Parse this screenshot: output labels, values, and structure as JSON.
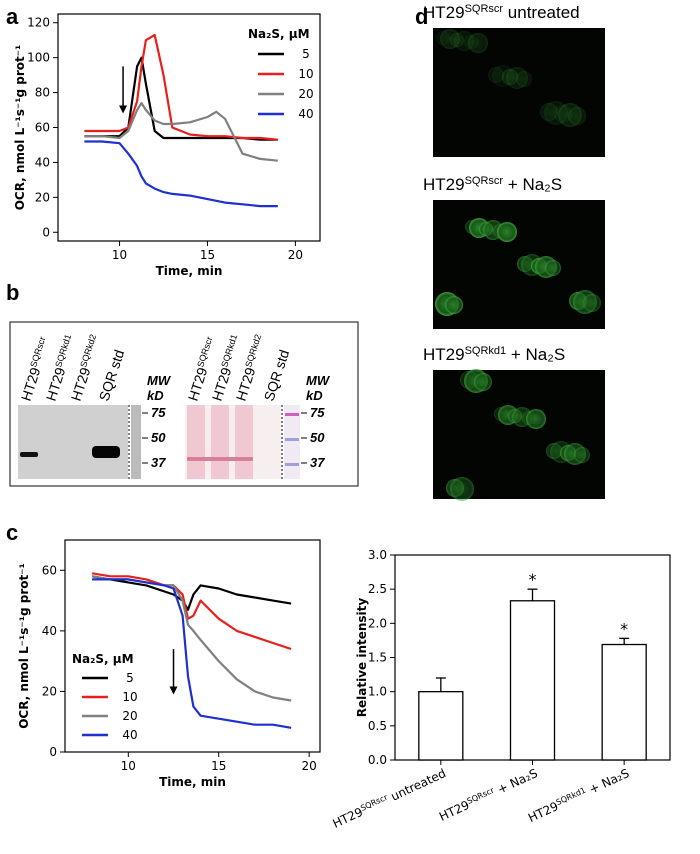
{
  "panel_labels": [
    "a",
    "b",
    "c",
    "d"
  ],
  "chart_data": [
    {
      "type": "line",
      "x_label": "Time, min",
      "y_label": "OCR, nmol L⁻¹s⁻¹g prot⁻¹",
      "x": [
        8,
        9,
        10,
        10.5,
        11,
        11.25,
        11.5,
        12,
        12.5,
        13,
        14,
        15,
        15.5,
        16,
        17,
        18,
        19
      ],
      "xlim": [
        6.5,
        21.4
      ],
      "xticks": [
        10,
        15,
        20
      ],
      "ylim": [
        -5,
        125
      ],
      "yticks": [
        0,
        20,
        40,
        60,
        80,
        100,
        120
      ],
      "legend_title": "Na₂S, μM",
      "legend": "upper right",
      "arrow": {
        "x": 10.2,
        "y": [
          95,
          68
        ]
      },
      "series": [
        {
          "name": "5",
          "color": "#000000",
          "values": [
            55,
            55,
            55,
            60,
            95,
            100,
            85,
            58,
            54,
            54,
            54,
            54,
            54,
            54,
            54,
            53,
            53
          ]
        },
        {
          "name": "10",
          "color": "#e8201c",
          "values": [
            58,
            58,
            58,
            60,
            75,
            95,
            110,
            113,
            90,
            60,
            56,
            55,
            55,
            55,
            54,
            54,
            53
          ]
        },
        {
          "name": "20",
          "color": "#808080",
          "values": [
            55,
            55,
            54,
            58,
            70,
            74,
            70,
            64,
            62,
            62,
            63,
            66,
            69,
            65,
            45,
            42,
            41
          ]
        },
        {
          "name": "40",
          "color": "#1f2fd0",
          "values": [
            52,
            52,
            51,
            45,
            38,
            32,
            28,
            25,
            23,
            22,
            21,
            19,
            18,
            17,
            16,
            15,
            15
          ]
        }
      ]
    },
    {
      "type": "line",
      "x_label": "Time, min",
      "y_label": "OCR, nmol L⁻¹s⁻¹g prot⁻¹",
      "x": [
        8,
        9,
        10,
        11,
        12,
        12.5,
        13,
        13.3,
        13.6,
        14,
        15,
        16,
        17,
        18,
        19
      ],
      "xlim": [
        6.5,
        20.6
      ],
      "xticks": [
        10,
        15,
        20
      ],
      "ylim": [
        0,
        70
      ],
      "yticks": [
        0,
        20,
        40,
        60
      ],
      "legend_title": "Na₂S, μM",
      "legend": "lower left",
      "arrow": {
        "x": 12.5,
        "y": [
          34,
          19
        ]
      },
      "series": [
        {
          "name": "5",
          "color": "#000000",
          "values": [
            58,
            57,
            56,
            55,
            53,
            52,
            50,
            47,
            52,
            55,
            54,
            52,
            51,
            50,
            49
          ]
        },
        {
          "name": "10",
          "color": "#e8201c",
          "values": [
            59,
            58,
            58,
            57,
            55,
            55,
            52,
            44,
            45,
            50,
            44,
            40,
            38,
            36,
            34
          ]
        },
        {
          "name": "20",
          "color": "#808080",
          "values": [
            58,
            57,
            57,
            56,
            55,
            55,
            50,
            42,
            40,
            37,
            30,
            24,
            20,
            18,
            17
          ]
        },
        {
          "name": "40",
          "color": "#1f2fd0",
          "values": [
            57,
            57,
            57,
            56,
            55,
            54,
            45,
            25,
            15,
            12,
            11,
            10,
            9,
            9,
            8
          ]
        }
      ]
    },
    {
      "type": "bar",
      "y_label": "Relative intensity",
      "color": "#ffffff",
      "categories": [
        [
          "HT29",
          "SQRscr",
          " untreated"
        ],
        [
          "HT29",
          "SQRscr",
          " + Na₂S"
        ],
        [
          "HT29",
          "SQRkd1",
          " + Na₂S"
        ]
      ],
      "values": [
        1.0,
        2.33,
        1.69
      ],
      "errors": [
        0.2,
        0.17,
        0.09
      ],
      "significance": [
        null,
        "*",
        "*"
      ],
      "ylim": [
        0,
        3
      ],
      "yticks": [
        {
          "value": 0,
          "label": "0.0"
        },
        0.5,
        {
          "value": 1,
          "label": "1.0"
        },
        1.5,
        {
          "value": 2,
          "label": "2.0"
        },
        2.5,
        {
          "value": 3,
          "label": "3.0"
        }
      ]
    }
  ],
  "blot": {
    "lanes": [
      [
        "HT29",
        "SQRscr"
      ],
      [
        "HT29",
        "SQRkd1"
      ],
      [
        "HT29",
        "SQRkd2"
      ],
      [
        "SQR std"
      ]
    ],
    "mw_label": [
      "MW",
      "kD"
    ],
    "markers": [
      "75",
      "50",
      "37"
    ]
  },
  "micrographs": [
    [
      "HT29",
      "SQRscr",
      " untreated"
    ],
    [
      "HT29",
      "SQRscr",
      " + Na₂S"
    ],
    [
      "HT29",
      "SQRkd1",
      " + Na₂S"
    ]
  ]
}
